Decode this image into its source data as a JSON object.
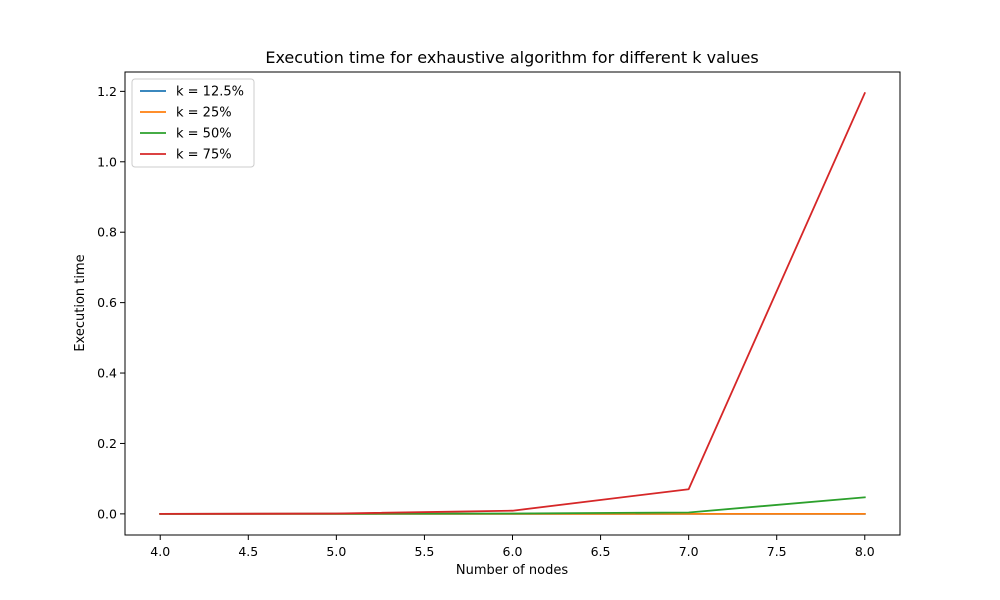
{
  "chart_data": {
    "type": "line",
    "title": "Execution time for exhaustive algorithm for different k values",
    "xlabel": "Number of nodes",
    "ylabel": "Execution time",
    "x": [
      4,
      5,
      6,
      7,
      8
    ],
    "xlim": [
      3.8,
      8.2
    ],
    "ylim": [
      -0.06,
      1.255
    ],
    "xticks": [
      "4.0",
      "4.5",
      "5.0",
      "5.5",
      "6.0",
      "6.5",
      "7.0",
      "7.5",
      "8.0"
    ],
    "yticks": [
      "0.0",
      "0.2",
      "0.4",
      "0.6",
      "0.8",
      "1.0",
      "1.2"
    ],
    "grid": false,
    "legend_position": "top-left",
    "series": [
      {
        "name": "k = 12.5%",
        "color": "#1f77b4",
        "values": [
          0.0,
          0.0,
          0.0,
          0.0,
          0.0
        ]
      },
      {
        "name": "k = 25%",
        "color": "#ff7f0e",
        "values": [
          0.0,
          0.0,
          0.0,
          0.0,
          0.0
        ]
      },
      {
        "name": "k = 50%",
        "color": "#2ca02c",
        "values": [
          0.0,
          0.0005,
          0.001,
          0.004,
          0.047
        ]
      },
      {
        "name": "k = 75%",
        "color": "#d62728",
        "values": [
          0.0,
          0.001,
          0.009,
          0.07,
          1.195
        ]
      }
    ]
  }
}
